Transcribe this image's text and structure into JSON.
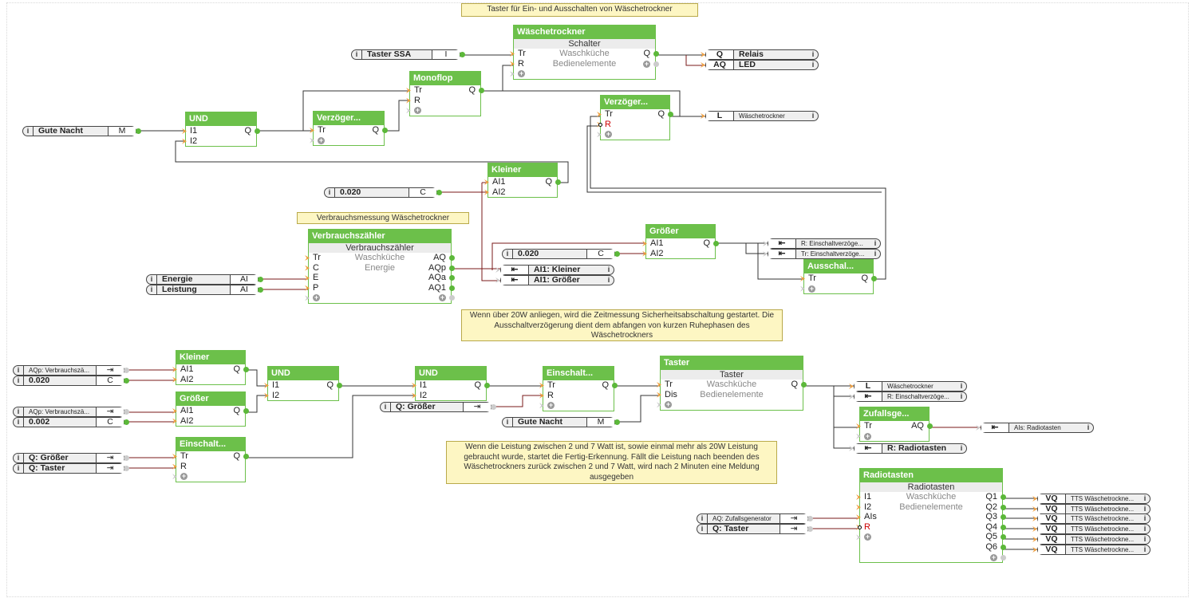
{
  "notes": [
    {
      "id": "n1",
      "text": "Taster für Ein- und Ausschalten von Wäschetrockner"
    },
    {
      "id": "n2",
      "text": "Verbrauchsmessung Wäschetrockner"
    },
    {
      "id": "n3",
      "text": "Wenn über 20W anliegen, wird die Zeitmessung Sicherheitsabschaltung gestartet. Die Ausschaltverzögerung dient dem abfangen von kurzen Ruhephasen des Wäschetrockners"
    },
    {
      "id": "n4",
      "text": "Wenn die Leistung zwischen 2 und 7 Watt ist, sowie einmal mehr als 20W Leistung gebraucht wurde, startet die Fertig-Erkennung. Fällt die Leistung nach beenden des Wäschetrockners zurück zwischen 2 und 7 Watt, wird nach 2 Minuten eine Meldung ausgegeben"
    }
  ],
  "blocks": [
    {
      "id": "b_schalter",
      "title": "Wäschetrockner",
      "subtitle": "Schalter",
      "room": "Waschküche",
      "category": "Bedienelemente",
      "inputs": [
        {
          "l": "Tr"
        },
        {
          "l": "R"
        }
      ],
      "outputs": [
        "Q"
      ],
      "plus_in": true,
      "plus_out": true
    },
    {
      "id": "b_monoflop",
      "title": "Monoflop",
      "inputs": [
        {
          "l": "Tr"
        },
        {
          "l": "R"
        }
      ],
      "outputs": [
        "Q"
      ],
      "plus_in": true
    },
    {
      "id": "b_und1",
      "title": "UND",
      "inputs": [
        {
          "l": "I1"
        },
        {
          "l": "I2"
        }
      ],
      "outputs": [
        "Q"
      ]
    },
    {
      "id": "b_verz1",
      "title": "Verzöger...",
      "inputs": [
        {
          "l": "Tr"
        }
      ],
      "outputs": [
        "Q"
      ],
      "plus_in": true
    },
    {
      "id": "b_verz2",
      "title": "Verzöger...",
      "inputs": [
        {
          "l": "Tr"
        },
        {
          "l": "R",
          "neg": true
        }
      ],
      "outputs": [
        "Q"
      ],
      "plus_in": true
    },
    {
      "id": "b_kleiner1",
      "title": "Kleiner",
      "inputs": [
        {
          "l": "AI1"
        },
        {
          "l": "AI2"
        }
      ],
      "outputs": [
        "Q"
      ]
    },
    {
      "id": "b_zaehler",
      "title": "Verbrauchszähler",
      "subtitle": "Verbrauchszähler",
      "room": "Waschküche",
      "category": "Energie",
      "inputs": [
        {
          "l": "Tr"
        },
        {
          "l": "C"
        },
        {
          "l": "E"
        },
        {
          "l": "P"
        }
      ],
      "outputs": [
        "AQ",
        "AQp",
        "AQa",
        "AQ1"
      ],
      "plus_in": true,
      "plus_out": true
    },
    {
      "id": "b_groesser1",
      "title": "Größer",
      "inputs": [
        {
          "l": "AI1"
        },
        {
          "l": "AI2"
        }
      ],
      "outputs": [
        "Q"
      ]
    },
    {
      "id": "b_ausschal",
      "title": "Ausschal...",
      "inputs": [
        {
          "l": "Tr"
        }
      ],
      "outputs": [
        "Q"
      ],
      "plus_in": true
    },
    {
      "id": "b_kleiner2",
      "title": "Kleiner",
      "inputs": [
        {
          "l": "AI1"
        },
        {
          "l": "AI2"
        }
      ],
      "outputs": [
        "Q"
      ]
    },
    {
      "id": "b_groesser2",
      "title": "Größer",
      "inputs": [
        {
          "l": "AI1"
        },
        {
          "l": "AI2"
        }
      ],
      "outputs": [
        "Q"
      ]
    },
    {
      "id": "b_und2",
      "title": "UND",
      "inputs": [
        {
          "l": "I1"
        },
        {
          "l": "I2"
        }
      ],
      "outputs": [
        "Q"
      ]
    },
    {
      "id": "b_einschalt1",
      "title": "Einschalt...",
      "inputs": [
        {
          "l": "Tr"
        },
        {
          "l": "R"
        }
      ],
      "outputs": [
        "Q"
      ],
      "plus_in": true
    },
    {
      "id": "b_und3",
      "title": "UND",
      "inputs": [
        {
          "l": "I1"
        },
        {
          "l": "I2"
        }
      ],
      "outputs": [
        "Q"
      ]
    },
    {
      "id": "b_einschalt2",
      "title": "Einschalt...",
      "inputs": [
        {
          "l": "Tr"
        },
        {
          "l": "R"
        }
      ],
      "outputs": [
        "Q"
      ],
      "plus_in": true
    },
    {
      "id": "b_taster",
      "title": "Taster",
      "subtitle": "Taster",
      "room": "Waschküche",
      "category": "Bedienelemente",
      "inputs": [
        {
          "l": "Tr"
        },
        {
          "l": "Dis"
        }
      ],
      "outputs": [
        "Q"
      ],
      "plus_in": true
    },
    {
      "id": "b_zufall",
      "title": "Zufallsge...",
      "inputs": [
        {
          "l": "Tr"
        }
      ],
      "outputs": [
        "AQ"
      ],
      "plus_in": true
    },
    {
      "id": "b_radio",
      "title": "Radiotasten",
      "subtitle": "Radiotasten",
      "room": "Waschküche",
      "category": "Bedienelemente",
      "inputs": [
        {
          "l": "I1"
        },
        {
          "l": "I2"
        },
        {
          "l": "AIs"
        },
        {
          "l": "R",
          "neg": true
        }
      ],
      "outputs": [
        "Q1",
        "Q2",
        "Q3",
        "Q4",
        "Q5",
        "Q6"
      ],
      "plus_in": true,
      "plus_out": true
    }
  ],
  "connectors": [
    {
      "id": "c_tasterssa",
      "kind": "in",
      "label": "Taster SSA",
      "type": "I"
    },
    {
      "id": "c_relais",
      "kind": "out",
      "label": "Relais",
      "type": "Q"
    },
    {
      "id": "c_led",
      "kind": "out",
      "label": "LED",
      "type": "AQ"
    },
    {
      "id": "c_gutenacht1",
      "kind": "in",
      "label": "Gute Nacht",
      "type": "M"
    },
    {
      "id": "c_lwt1",
      "kind": "out",
      "label": "Wäschetrockner",
      "type": "L",
      "small": true
    },
    {
      "id": "c_c020a",
      "kind": "in",
      "label": "0.020",
      "type": "C"
    },
    {
      "id": "c_energie",
      "kind": "in",
      "label": "Energie",
      "type": "AI"
    },
    {
      "id": "c_leistung",
      "kind": "in",
      "label": "Leistung",
      "type": "AI"
    },
    {
      "id": "c_c020b",
      "kind": "in",
      "label": "0.020",
      "type": "C"
    },
    {
      "id": "c_ai1kleiner",
      "kind": "out",
      "label": "AI1: Kleiner",
      "type": "⇤",
      "ref": true
    },
    {
      "id": "c_ai1groesser",
      "kind": "out",
      "label": "AI1: Größer",
      "type": "⇤",
      "ref": true
    },
    {
      "id": "c_reinschalt1",
      "kind": "out",
      "label": "R:  Einschaltverzöge...",
      "type": "⇤",
      "ref": true,
      "small": true
    },
    {
      "id": "c_treinschalt",
      "kind": "out",
      "label": "Tr:  Einschaltverzöge...",
      "type": "⇤",
      "ref": true,
      "small": true
    },
    {
      "id": "c_aqp1",
      "kind": "in",
      "label": "AQp:  Verbrauchszä...",
      "type": "⇥",
      "ref": true,
      "small": true
    },
    {
      "id": "c_c020c",
      "kind": "in",
      "label": "0.020",
      "type": "C"
    },
    {
      "id": "c_aqp2",
      "kind": "in",
      "label": "AQp:  Verbrauchszä...",
      "type": "⇥",
      "ref": true,
      "small": true
    },
    {
      "id": "c_c002",
      "kind": "in",
      "label": "0.002",
      "type": "C"
    },
    {
      "id": "c_qgroesser1",
      "kind": "in",
      "label": "Q: Größer",
      "type": "⇥",
      "ref": true
    },
    {
      "id": "c_qtaster1",
      "kind": "in",
      "label": "Q: Taster",
      "type": "⇥",
      "ref": true
    },
    {
      "id": "c_qgroesser2",
      "kind": "in",
      "label": "Q: Größer",
      "type": "⇥",
      "ref": true
    },
    {
      "id": "c_gutenacht2",
      "kind": "in",
      "label": "Gute Nacht",
      "type": "M"
    },
    {
      "id": "c_lwt2",
      "kind": "out",
      "label": "Wäschetrockner",
      "type": "L",
      "small": true
    },
    {
      "id": "c_reinschalt2",
      "kind": "out",
      "label": "R:  Einschaltverzöge...",
      "type": "⇤",
      "ref": true,
      "small": true
    },
    {
      "id": "c_rradio",
      "kind": "out",
      "label": "R: Radiotasten",
      "type": "⇤",
      "ref": true
    },
    {
      "id": "c_aisradio",
      "kind": "out",
      "label": "AIs: Radiotasten",
      "type": "⇤",
      "ref": true,
      "small": true
    },
    {
      "id": "c_aqzufall",
      "kind": "in",
      "label": "AQ: Zufallsgenerator",
      "type": "⇥",
      "ref": true,
      "small": true
    },
    {
      "id": "c_qtaster2",
      "kind": "in",
      "label": "Q: Taster",
      "type": "⇥",
      "ref": true
    },
    {
      "id": "c_vq1",
      "kind": "out",
      "label": "TTS  Wäschetrockne...",
      "type": "VQ",
      "small": true
    },
    {
      "id": "c_vq2",
      "kind": "out",
      "label": "TTS  Wäschetrockne...",
      "type": "VQ",
      "small": true
    },
    {
      "id": "c_vq3",
      "kind": "out",
      "label": "TTS  Wäschetrockne...",
      "type": "VQ",
      "small": true
    },
    {
      "id": "c_vq4",
      "kind": "out",
      "label": "TTS  Wäschetrockne...",
      "type": "VQ",
      "small": true
    },
    {
      "id": "c_vq5",
      "kind": "out",
      "label": "TTS  Wäschetrockne...",
      "type": "VQ",
      "small": true
    },
    {
      "id": "c_vq6",
      "kind": "out",
      "label": "TTS  Wäschetrockne...",
      "type": "VQ",
      "small": true
    }
  ],
  "colors": {
    "block_header": "#6cc04a",
    "digital_wire": "#333333",
    "analog_wire": "#7a1a1a",
    "note_bg": "#fdf6c3",
    "negated_input": "#cc0000"
  }
}
